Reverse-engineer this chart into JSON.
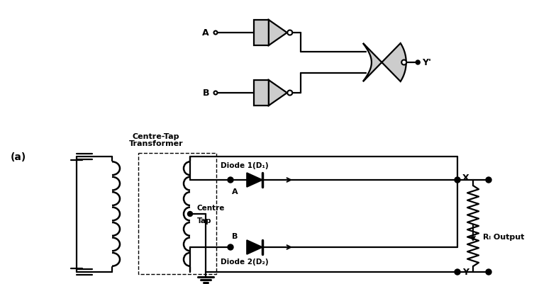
{
  "bg_color": "#ffffff",
  "gate_fill": "#cccccc",
  "label_a": "A",
  "label_b": "B",
  "label_yp": "Y'",
  "label_a_node": "(a)",
  "label_diode1": "Diode 1(D₁)",
  "label_diode2": "Diode 2(D₂)",
  "label_rl": "Rₗ Output",
  "label_x": "X",
  "label_y": "Y",
  "label_a_pt": "A",
  "label_b_pt": "B",
  "label_centre_tap_title": "Centre-Tap",
  "label_transformer": "Transformer",
  "label_centre": "Centre",
  "label_tap": "Tap"
}
